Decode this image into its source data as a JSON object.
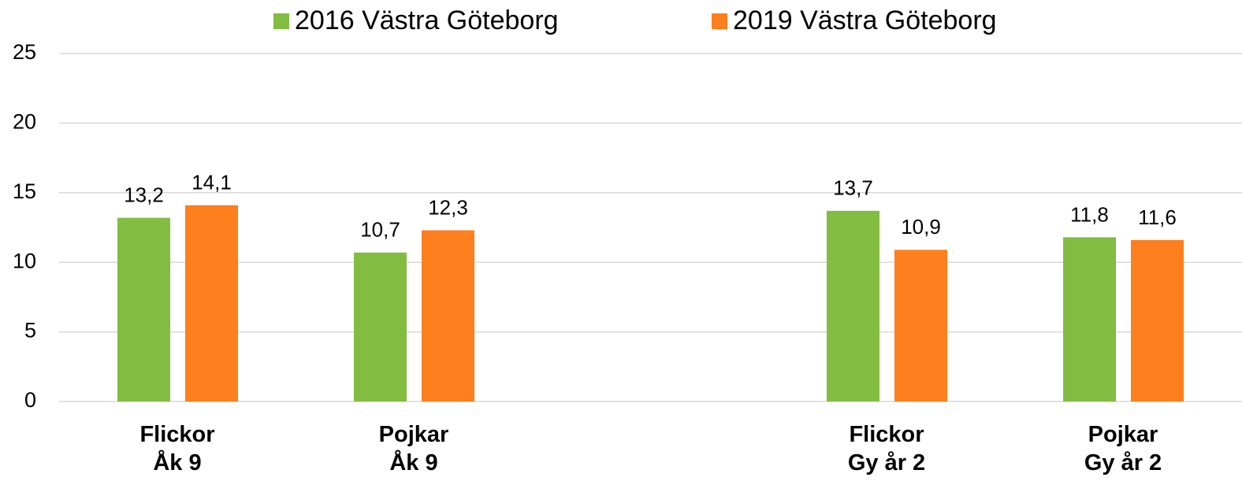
{
  "chart_data": {
    "type": "bar",
    "categories": [
      "Flickor\nÅk 9",
      "Pojkar\nÅk 9",
      null,
      "Flickor\nGy år 2",
      "Pojkar\nGy år 2"
    ],
    "series": [
      {
        "name": "2016 Västra Göteborg",
        "color": "#82bc41",
        "values": [
          13.2,
          10.7,
          null,
          13.7,
          11.8
        ],
        "value_labels": [
          "13,2",
          "10,7",
          null,
          "13,7",
          "11,8"
        ]
      },
      {
        "name": "2019 Västra Göteborg",
        "color": "#fd7f1e",
        "values": [
          14.1,
          12.3,
          null,
          10.9,
          11.6
        ],
        "value_labels": [
          "14,1",
          "12,3",
          null,
          "10,9",
          "11,6"
        ]
      }
    ],
    "ylim": [
      0,
      25
    ],
    "yticks": [
      0,
      5,
      10,
      15,
      20,
      25
    ],
    "grid": true,
    "legend": "top"
  }
}
